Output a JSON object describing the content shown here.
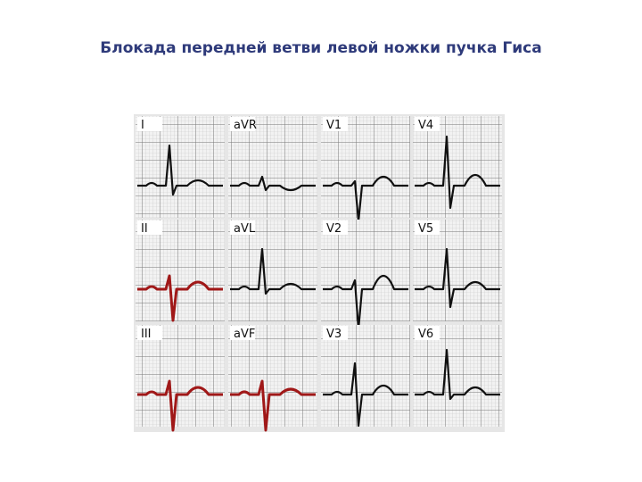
{
  "header": {
    "title": "Блокада передней ветви левой ножки пучка Гиса"
  },
  "leads": [
    "I",
    "aVR",
    "V1",
    "V4",
    "II",
    "aVL",
    "V2",
    "V5",
    "III",
    "aVF",
    "V3",
    "V6"
  ]
}
